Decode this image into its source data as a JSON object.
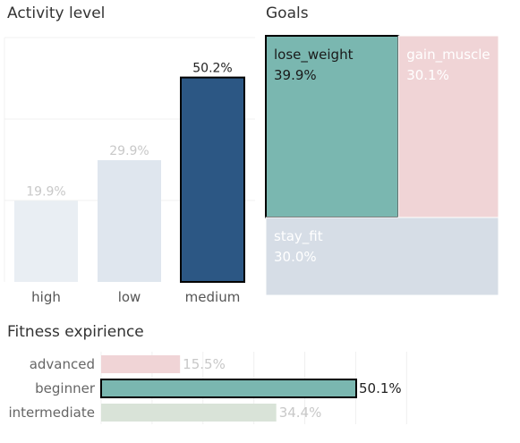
{
  "titles": {
    "activity": "Activity level",
    "goals": "Goals",
    "fitness": "Fitness expirience"
  },
  "colors": {
    "activity_highlight": "#2c5784",
    "activity_muted": [
      "#e9eef3",
      "#dfe6ee"
    ],
    "goals": {
      "lose_weight": "#7ab7b0",
      "gain_muscle": "#f0d4d6",
      "stay_fit": "#d6dde6"
    },
    "fitness": {
      "advanced": "#f0d4d6",
      "beginner": "#7ab7b0",
      "intermediate": "#d9e3d8"
    },
    "muted_text": "#c8c8c8",
    "grid": "#f0f0f0"
  },
  "chart_data": [
    {
      "type": "bar",
      "title": "Activity level",
      "categories": [
        "high",
        "low",
        "medium"
      ],
      "values": [
        19.9,
        29.9,
        50.2
      ],
      "labels": [
        "19.9%",
        "29.9%",
        "50.2%"
      ],
      "highlighted": "medium",
      "ylim": [
        0,
        60
      ],
      "grid": true
    },
    {
      "type": "treemap",
      "title": "Goals",
      "items": [
        {
          "name": "lose_weight",
          "value": 39.9,
          "label": "39.9%",
          "highlighted": true
        },
        {
          "name": "gain_muscle",
          "value": 30.1,
          "label": "30.1%",
          "highlighted": false
        },
        {
          "name": "stay_fit",
          "value": 30.0,
          "label": "30.0%",
          "highlighted": false
        }
      ]
    },
    {
      "type": "bar",
      "orientation": "horizontal",
      "title": "Fitness expirience",
      "categories": [
        "advanced",
        "beginner",
        "intermediate"
      ],
      "values": [
        15.5,
        50.1,
        34.4
      ],
      "labels": [
        "15.5%",
        "50.1%",
        "34.4%"
      ],
      "highlighted": "beginner",
      "xlim": [
        0,
        60
      ],
      "grid": true
    }
  ]
}
